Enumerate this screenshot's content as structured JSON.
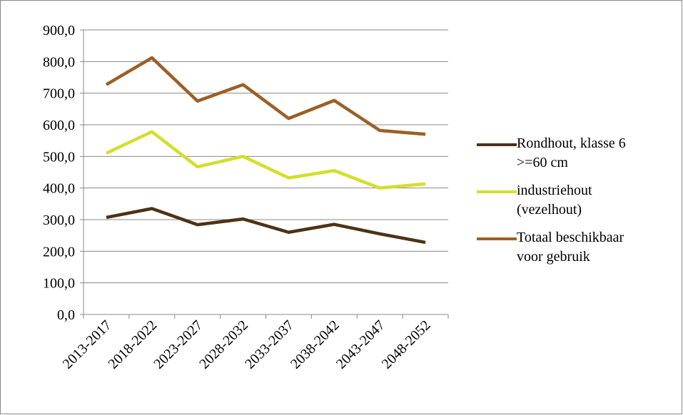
{
  "chart_data": {
    "type": "line",
    "categories": [
      "2013-2017",
      "2018-2022",
      "2023-2027",
      "2028-2032",
      "2033-2037",
      "2038-2042",
      "2043-2047",
      "2048-2052"
    ],
    "series": [
      {
        "name": "Rondhout, klasse 6 >=60 cm",
        "color": "#4e3214",
        "values": [
          307,
          335,
          284,
          302,
          260,
          285,
          255,
          228
        ]
      },
      {
        "name": "industriehout (vezelhout)",
        "color": "#d4de2a",
        "values": [
          510,
          578,
          467,
          500,
          432,
          455,
          400,
          413
        ]
      },
      {
        "name": "Totaal beschikbaar voor gebruik",
        "color": "#9c5f26",
        "values": [
          727,
          812,
          675,
          727,
          620,
          677,
          582,
          570
        ]
      }
    ],
    "ylim": [
      0,
      900
    ],
    "yticks": [
      {
        "value": 0,
        "label": "0,0"
      },
      {
        "value": 100,
        "label": "100,0"
      },
      {
        "value": 200,
        "label": "200,0"
      },
      {
        "value": 300,
        "label": "300,0"
      },
      {
        "value": 400,
        "label": "400,0"
      },
      {
        "value": 500,
        "label": "500,0"
      },
      {
        "value": 600,
        "label": "600,0"
      },
      {
        "value": 700,
        "label": "700,0"
      },
      {
        "value": 800,
        "label": "800,0"
      },
      {
        "value": 900,
        "label": "900,0"
      }
    ],
    "grid": true,
    "legend": "right"
  }
}
